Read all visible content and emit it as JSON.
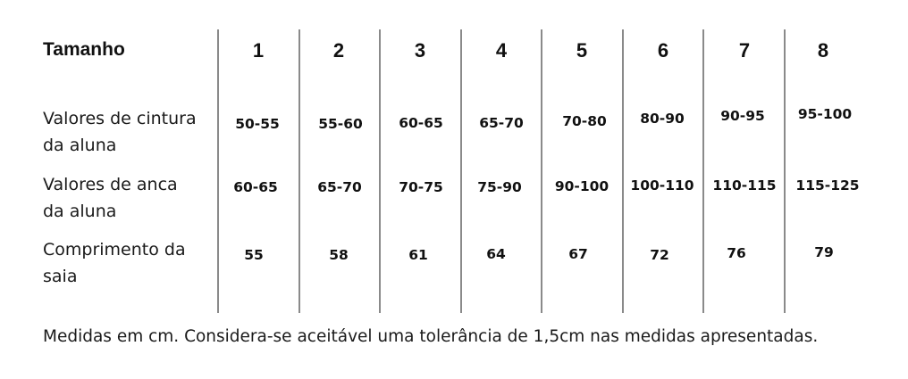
{
  "table": {
    "header_label": "Tamanho",
    "sizes": [
      "1",
      "2",
      "3",
      "4",
      "5",
      "6",
      "7",
      "8"
    ],
    "rows": [
      {
        "label_line1": "Valores de cintura",
        "label_line2": "da aluna",
        "values": [
          "50-55",
          "55-60",
          "60-65",
          "65-70",
          "70-80",
          "80-90",
          "90-95",
          "95-100"
        ]
      },
      {
        "label_line1": "Valores de anca",
        "label_line2": "da aluna",
        "values": [
          "60-65",
          "65-70",
          "70-75",
          "75-90",
          "90-100",
          "100-110",
          "110-115",
          "115-125"
        ]
      },
      {
        "label_line1": "Comprimento  da",
        "label_line2": "saia",
        "values": [
          "55",
          "58",
          "61",
          "64",
          "67",
          "72",
          "76",
          "79"
        ]
      }
    ]
  },
  "footer": "Medidas em cm. Considera-se aceitável uma tolerância de 1,5cm nas medidas apresentadas."
}
